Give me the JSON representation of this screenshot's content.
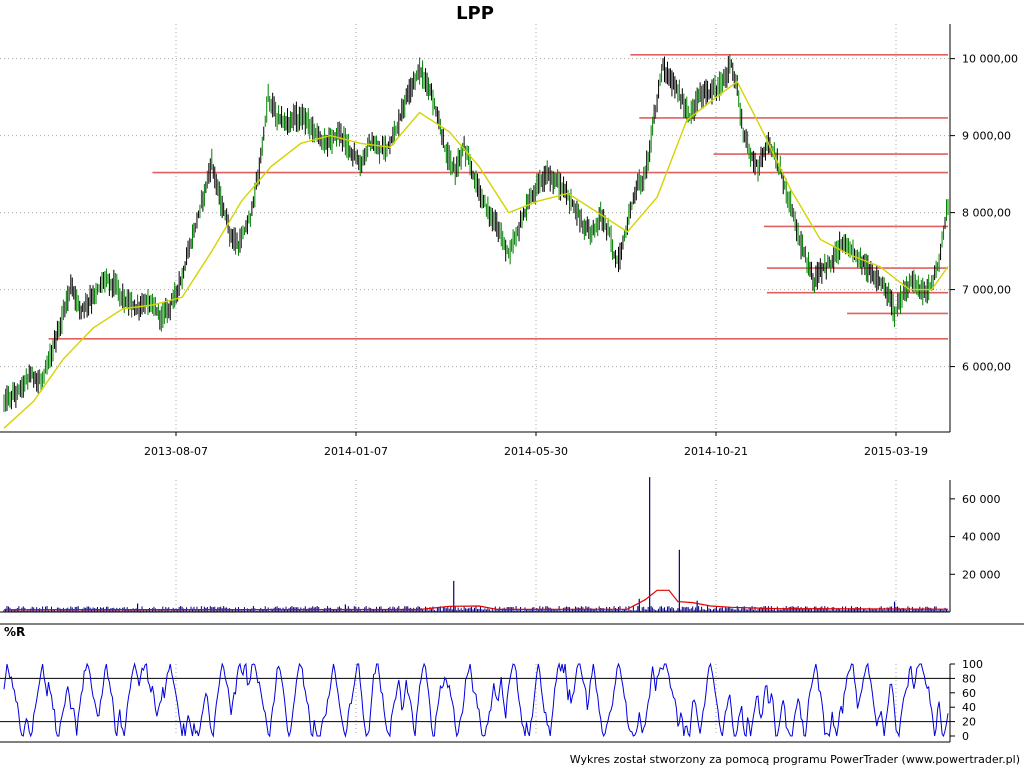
{
  "chart_data": {
    "type": "line",
    "title": "LPP",
    "footer": "Wykres został stworzony za pomocą programu PowerTrader (www.powertrader.pl)",
    "colors": {
      "price": "#000000",
      "price_up": "#008000",
      "moving_average": "#d4d400",
      "levels": "#e06060",
      "volume": "#000080",
      "volume_average": "#e00000",
      "williams_r": "#0000dd",
      "grid": "#aaaaaa"
    },
    "price_panel": {
      "x_ticks": [
        "2013-08-07",
        "2014-01-07",
        "2014-05-30",
        "2014-10-21",
        "2015-03-19"
      ],
      "y_ticks": [
        "6 000,00",
        "7 000,00",
        "8 000,00",
        "9 000,00",
        "10 000,00"
      ],
      "y_tick_values": [
        6000,
        7000,
        8000,
        9000,
        10000
      ],
      "ylim": [
        5150,
        10450
      ],
      "grid": true,
      "price_path": [
        [
          0,
          5550
        ],
        [
          8,
          5650
        ],
        [
          18,
          5900
        ],
        [
          25,
          5800
        ],
        [
          32,
          6150
        ],
        [
          38,
          6550
        ],
        [
          45,
          7050
        ],
        [
          52,
          6750
        ],
        [
          60,
          6900
        ],
        [
          68,
          7150
        ],
        [
          75,
          7050
        ],
        [
          82,
          6850
        ],
        [
          90,
          6750
        ],
        [
          98,
          6850
        ],
        [
          106,
          6650
        ],
        [
          112,
          6800
        ],
        [
          120,
          7150
        ],
        [
          128,
          7750
        ],
        [
          136,
          8350
        ],
        [
          140,
          8650
        ],
        [
          146,
          8150
        ],
        [
          152,
          7750
        ],
        [
          158,
          7550
        ],
        [
          166,
          7950
        ],
        [
          172,
          8550
        ],
        [
          178,
          9500
        ],
        [
          184,
          9250
        ],
        [
          190,
          9150
        ],
        [
          196,
          9250
        ],
        [
          204,
          9200
        ],
        [
          212,
          9000
        ],
        [
          218,
          8900
        ],
        [
          226,
          9050
        ],
        [
          234,
          8800
        ],
        [
          240,
          8600
        ],
        [
          246,
          8900
        ],
        [
          252,
          8800
        ],
        [
          258,
          8850
        ],
        [
          264,
          9050
        ],
        [
          272,
          9550
        ],
        [
          280,
          9850
        ],
        [
          286,
          9650
        ],
        [
          292,
          9250
        ],
        [
          298,
          8750
        ],
        [
          304,
          8550
        ],
        [
          310,
          8850
        ],
        [
          316,
          8500
        ],
        [
          322,
          8200
        ],
        [
          328,
          7950
        ],
        [
          334,
          7750
        ],
        [
          340,
          7450
        ],
        [
          346,
          7750
        ],
        [
          352,
          8050
        ],
        [
          358,
          8300
        ],
        [
          366,
          8500
        ],
        [
          372,
          8400
        ],
        [
          378,
          8250
        ],
        [
          384,
          8100
        ],
        [
          390,
          7850
        ],
        [
          396,
          7750
        ],
        [
          402,
          7950
        ],
        [
          408,
          7750
        ],
        [
          412,
          7350
        ],
        [
          416,
          7450
        ],
        [
          420,
          7900
        ],
        [
          426,
          8300
        ],
        [
          432,
          8500
        ],
        [
          440,
          9450
        ],
        [
          444,
          9950
        ],
        [
          448,
          9700
        ],
        [
          454,
          9600
        ],
        [
          458,
          9400
        ],
        [
          462,
          9250
        ],
        [
          468,
          9500
        ],
        [
          474,
          9550
        ],
        [
          480,
          9600
        ],
        [
          486,
          9750
        ],
        [
          490,
          9950
        ],
        [
          494,
          9600
        ],
        [
          498,
          9050
        ],
        [
          502,
          8800
        ],
        [
          508,
          8600
        ],
        [
          514,
          8900
        ],
        [
          520,
          8700
        ],
        [
          524,
          8500
        ],
        [
          530,
          8100
        ],
        [
          536,
          7650
        ],
        [
          540,
          7400
        ],
        [
          546,
          7100
        ],
        [
          552,
          7300
        ],
        [
          558,
          7350
        ],
        [
          564,
          7600
        ],
        [
          570,
          7500
        ],
        [
          576,
          7450
        ],
        [
          582,
          7250
        ],
        [
          588,
          7150
        ],
        [
          594,
          7000
        ],
        [
          600,
          6700
        ],
        [
          606,
          6950
        ],
        [
          612,
          7150
        ],
        [
          618,
          6950
        ],
        [
          624,
          7050
        ],
        [
          630,
          7350
        ],
        [
          636,
          8100
        ]
      ],
      "moving_average_path": [
        [
          0,
          5200
        ],
        [
          20,
          5550
        ],
        [
          40,
          6100
        ],
        [
          60,
          6500
        ],
        [
          80,
          6750
        ],
        [
          100,
          6800
        ],
        [
          120,
          6900
        ],
        [
          140,
          7500
        ],
        [
          160,
          8150
        ],
        [
          180,
          8600
        ],
        [
          200,
          8900
        ],
        [
          220,
          9000
        ],
        [
          240,
          8900
        ],
        [
          260,
          8850
        ],
        [
          280,
          9300
        ],
        [
          300,
          9050
        ],
        [
          320,
          8600
        ],
        [
          340,
          8000
        ],
        [
          360,
          8150
        ],
        [
          380,
          8250
        ],
        [
          400,
          8000
        ],
        [
          420,
          7750
        ],
        [
          440,
          8200
        ],
        [
          460,
          9200
        ],
        [
          480,
          9500
        ],
        [
          494,
          9700
        ],
        [
          510,
          9100
        ],
        [
          530,
          8300
        ],
        [
          550,
          7650
        ],
        [
          570,
          7450
        ],
        [
          590,
          7300
        ],
        [
          610,
          7000
        ],
        [
          625,
          7000
        ],
        [
          636,
          7300
        ]
      ],
      "levels": [
        {
          "from": 422,
          "value": 10050
        },
        {
          "from": 428,
          "value": 9230
        },
        {
          "from": 478,
          "value": 8760
        },
        {
          "from": 100,
          "value": 8520
        },
        {
          "from": 512,
          "value": 7820
        },
        {
          "from": 514,
          "value": 7280
        },
        {
          "from": 514,
          "value": 6960
        },
        {
          "from": 568,
          "value": 6690
        },
        {
          "from": 30,
          "value": 6360
        }
      ]
    },
    "volume_panel": {
      "y_ticks": [
        "20 000",
        "40 000",
        "60 000"
      ],
      "y_tick_values": [
        20000,
        40000,
        60000
      ],
      "ylim": [
        0,
        70000
      ],
      "spikes": [
        {
          "x": 435,
          "value": 71500
        },
        {
          "x": 455,
          "value": 33000
        },
        {
          "x": 303,
          "value": 16500
        },
        {
          "x": 428,
          "value": 7000
        },
        {
          "x": 467,
          "value": 6000
        },
        {
          "x": 90,
          "value": 4500
        },
        {
          "x": 230,
          "value": 4000
        },
        {
          "x": 600,
          "value": 5500
        }
      ],
      "volume_average_path": [
        [
          0,
          1200
        ],
        [
          280,
          1300
        ],
        [
          300,
          3000
        ],
        [
          320,
          3200
        ],
        [
          332,
          1400
        ],
        [
          420,
          1500
        ],
        [
          432,
          6500
        ],
        [
          440,
          11500
        ],
        [
          448,
          11500
        ],
        [
          454,
          5500
        ],
        [
          464,
          5000
        ],
        [
          476,
          3200
        ],
        [
          490,
          2500
        ],
        [
          520,
          1800
        ],
        [
          636,
          1500
        ]
      ]
    },
    "williams_r_panel": {
      "label": "%R",
      "y_ticks": [
        "0",
        "20",
        "40",
        "60",
        "80",
        "100"
      ],
      "y_tick_values": [
        0,
        20,
        40,
        60,
        80,
        100
      ],
      "ylim": [
        0,
        100
      ],
      "levels": [
        20,
        80
      ]
    }
  }
}
